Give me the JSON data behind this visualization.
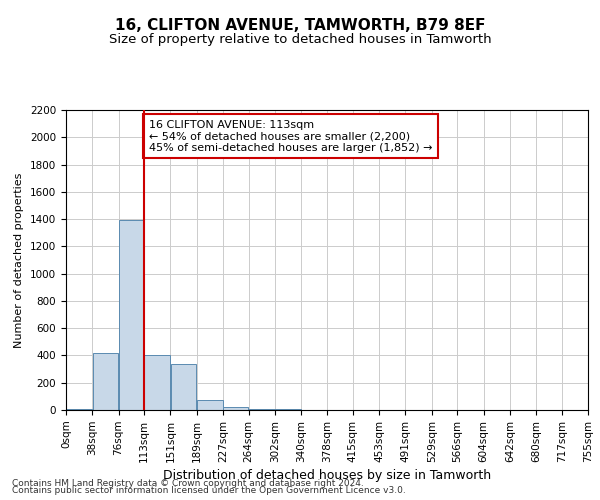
{
  "title": "16, CLIFTON AVENUE, TAMWORTH, B79 8EF",
  "subtitle": "Size of property relative to detached houses in Tamworth",
  "xlabel": "Distribution of detached houses by size in Tamworth",
  "ylabel": "Number of detached properties",
  "footer1": "Contains HM Land Registry data © Crown copyright and database right 2024.",
  "footer2": "Contains public sector information licensed under the Open Government Licence v3.0.",
  "annotation_line1": "16 CLIFTON AVENUE: 113sqm",
  "annotation_line2": "← 54% of detached houses are smaller (2,200)",
  "annotation_line3": "45% of semi-detached houses are larger (1,852) →",
  "bar_edges": [
    0,
    38,
    76,
    113,
    151,
    189,
    227,
    264,
    302,
    340,
    378,
    415,
    453,
    491,
    529,
    566,
    604,
    642,
    680,
    717,
    755
  ],
  "bar_heights": [
    10,
    420,
    1390,
    400,
    340,
    70,
    25,
    5,
    5,
    2,
    0,
    0,
    0,
    0,
    0,
    0,
    0,
    0,
    0,
    0
  ],
  "bar_color": "#c8d8e8",
  "bar_edge_color": "#5a8ab0",
  "red_line_x": 113,
  "ylim": [
    0,
    2200
  ],
  "yticks": [
    0,
    200,
    400,
    600,
    800,
    1000,
    1200,
    1400,
    1600,
    1800,
    2000,
    2200
  ],
  "xtick_labels": [
    "0sqm",
    "38sqm",
    "76sqm",
    "113sqm",
    "151sqm",
    "189sqm",
    "227sqm",
    "264sqm",
    "302sqm",
    "340sqm",
    "378sqm",
    "415sqm",
    "453sqm",
    "491sqm",
    "529sqm",
    "566sqm",
    "604sqm",
    "642sqm",
    "680sqm",
    "717sqm",
    "755sqm"
  ],
  "grid_color": "#cccccc",
  "annotation_box_color": "#cc0000",
  "title_fontsize": 11,
  "subtitle_fontsize": 9.5,
  "xlabel_fontsize": 9,
  "ylabel_fontsize": 8,
  "tick_fontsize": 7.5,
  "annotation_fontsize": 8,
  "footer_fontsize": 6.5
}
